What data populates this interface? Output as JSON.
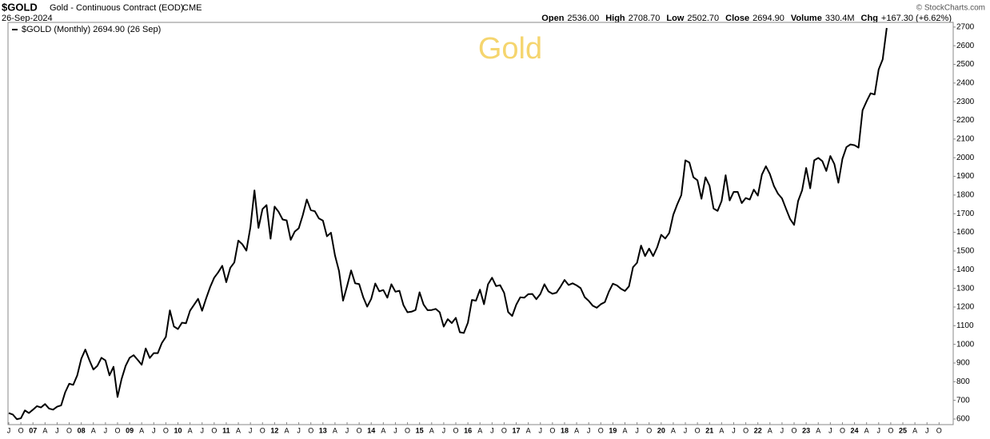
{
  "chart_data": {
    "type": "line",
    "title": "$GOLD",
    "subtitle": "Gold - Continuous Contract (EOD)",
    "exchange": "CME",
    "date": "26-Sep-2024",
    "credit": "© StockCharts.com",
    "annotation": "Gold",
    "quote": [
      {
        "label": "Open",
        "value": "2536.00"
      },
      {
        "label": "High",
        "value": "2708.70"
      },
      {
        "label": "Low",
        "value": "2502.70"
      },
      {
        "label": "Close",
        "value": "2694.90"
      },
      {
        "label": "Volume",
        "value": "330.4M"
      },
      {
        "label": "Chg",
        "value": "+167.30 (+6.62%)"
      }
    ],
    "categories": [
      "J",
      null,
      null,
      "O",
      null,
      null,
      "07",
      null,
      null,
      "A",
      null,
      null,
      "J",
      null,
      null,
      "O",
      null,
      null,
      "08",
      null,
      null,
      "A",
      null,
      null,
      "J",
      null,
      null,
      "O",
      null,
      null,
      "09",
      null,
      null,
      "A",
      null,
      null,
      "J",
      null,
      null,
      "O",
      null,
      null,
      "10",
      null,
      null,
      "A",
      null,
      null,
      "J",
      null,
      null,
      "O",
      null,
      null,
      "11",
      null,
      null,
      "A",
      null,
      null,
      "J",
      null,
      null,
      "O",
      null,
      null,
      "12",
      null,
      null,
      "A",
      null,
      null,
      "J",
      null,
      null,
      "O",
      null,
      null,
      "13",
      null,
      null,
      "A",
      null,
      null,
      "J",
      null,
      null,
      "O",
      null,
      null,
      "14",
      null,
      null,
      "A",
      null,
      null,
      "J",
      null,
      null,
      "O",
      null,
      null,
      "15",
      null,
      null,
      "A",
      null,
      null,
      "J",
      null,
      null,
      "O",
      null,
      null,
      "16",
      null,
      null,
      "A",
      null,
      null,
      "J",
      null,
      null,
      "O",
      null,
      null,
      "17",
      null,
      null,
      "A",
      null,
      null,
      "J",
      null,
      null,
      "O",
      null,
      null,
      "18",
      null,
      null,
      "A",
      null,
      null,
      "J",
      null,
      null,
      "O",
      null,
      null,
      "19",
      null,
      null,
      "A",
      null,
      null,
      "J",
      null,
      null,
      "O",
      null,
      null,
      "20",
      null,
      null,
      "A",
      null,
      null,
      "J",
      null,
      null,
      "O",
      null,
      null,
      "21",
      null,
      null,
      "A",
      null,
      null,
      "J",
      null,
      null,
      "O",
      null,
      null,
      "22",
      null,
      null,
      "A",
      null,
      null,
      "J",
      null,
      null,
      "O",
      null,
      null,
      "23",
      null,
      null,
      "A",
      null,
      null,
      "J",
      null,
      null,
      "O",
      null,
      null,
      "24",
      null,
      null,
      "A",
      null,
      null,
      "J",
      null,
      null,
      "O",
      null,
      null,
      "25",
      null,
      null,
      "A",
      null,
      null,
      "J",
      null,
      null,
      "O"
    ],
    "series": [
      {
        "name": "$GOLD (Monthly) 2694.90 (26 Sep)",
        "color": "#000000",
        "values": [
          632,
          624,
          599,
          604,
          646,
          632,
          650,
          669,
          662,
          680,
          656,
          650,
          666,
          673,
          743,
          789,
          783,
          834,
          923,
          972,
          916,
          865,
          885,
          928,
          914,
          834,
          880,
          718,
          814,
          884,
          928,
          942,
          917,
          891,
          978,
          927,
          953,
          953,
          1007,
          1040,
          1182,
          1096,
          1082,
          1116,
          1113,
          1180,
          1212,
          1244,
          1180,
          1246,
          1307,
          1357,
          1386,
          1421,
          1333,
          1410,
          1439,
          1556,
          1536,
          1502,
          1628,
          1825,
          1624,
          1725,
          1746,
          1566,
          1738,
          1710,
          1669,
          1664,
          1560,
          1604,
          1622,
          1692,
          1776,
          1719,
          1713,
          1675,
          1663,
          1579,
          1598,
          1476,
          1393,
          1234,
          1312,
          1396,
          1327,
          1323,
          1253,
          1202,
          1244,
          1326,
          1284,
          1291,
          1250,
          1322,
          1282,
          1287,
          1210,
          1172,
          1175,
          1184,
          1279,
          1213,
          1183,
          1184,
          1190,
          1172,
          1095,
          1135,
          1114,
          1142,
          1065,
          1061,
          1116,
          1238,
          1234,
          1293,
          1215,
          1322,
          1357,
          1312,
          1317,
          1276,
          1173,
          1152,
          1212,
          1252,
          1250,
          1269,
          1270,
          1242,
          1270,
          1322,
          1284,
          1271,
          1277,
          1309,
          1345,
          1318,
          1327,
          1316,
          1301,
          1253,
          1233,
          1207,
          1196,
          1215,
          1226,
          1282,
          1325,
          1316,
          1298,
          1286,
          1311,
          1413,
          1437,
          1529,
          1473,
          1513,
          1473,
          1520,
          1587,
          1567,
          1597,
          1694,
          1751,
          1800,
          1986,
          1974,
          1895,
          1879,
          1780,
          1895,
          1850,
          1728,
          1715,
          1768,
          1906,
          1771,
          1817,
          1817,
          1757,
          1784,
          1776,
          1829,
          1797,
          1909,
          1954,
          1912,
          1848,
          1807,
          1782,
          1726,
          1672,
          1640,
          1768,
          1826,
          1945,
          1836,
          1986,
          1999,
          1982,
          1929,
          2009,
          1966,
          1866,
          1994,
          2057,
          2071,
          2067,
          2054,
          2254,
          2302,
          2345,
          2339,
          2473,
          2527,
          2694.9,
          null,
          null,
          null,
          null,
          null,
          null,
          null,
          null,
          null,
          null,
          null,
          null,
          null
        ]
      }
    ],
    "ylim": [
      570,
      2725
    ],
    "yticks": [
      600,
      700,
      800,
      900,
      1000,
      1100,
      1200,
      1300,
      1400,
      1500,
      1600,
      1700,
      1800,
      1900,
      2000,
      2100,
      2200,
      2300,
      2400,
      2500,
      2600,
      2700
    ],
    "grid": false
  }
}
